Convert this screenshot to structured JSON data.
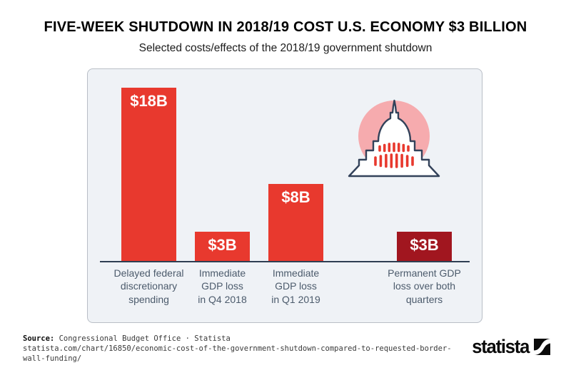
{
  "header": {
    "title": "FIVE-WEEK SHUTDOWN IN 2018/19 COST U.S. ECONOMY $3 BILLION",
    "subtitle": "Selected costs/effects of the 2018/19 government shutdown"
  },
  "chart_data": {
    "type": "bar",
    "title": "FIVE-WEEK SHUTDOWN IN 2018/19 COST U.S. ECONOMY $3 BILLION",
    "subtitle": "Selected costs/effects of the 2018/19 government shutdown",
    "categories": [
      "Delayed federal discretionary spending",
      "Immediate GDP loss in Q4 2018",
      "Immediate GDP loss in Q1 2019",
      "Permanent GDP loss over both quarters"
    ],
    "category_lines": [
      [
        "Delayed federal",
        "discretionary",
        "spending"
      ],
      [
        "Immediate",
        "GDP loss",
        "in Q4 2018"
      ],
      [
        "Immediate",
        "GDP loss",
        "in Q1 2019"
      ],
      [
        "Permanent GDP",
        "loss over both",
        "quarters"
      ]
    ],
    "values": [
      18,
      3,
      8,
      3
    ],
    "value_labels": [
      "$18B",
      "$3B",
      "$8B",
      "$3B"
    ],
    "bar_colors": [
      "#e8392e",
      "#e8392e",
      "#e8392e",
      "#a1161f"
    ],
    "ylim": [
      0,
      18
    ],
    "grid": false,
    "legend": "none",
    "annotations": [
      "US Capitol building icon in pink circle"
    ]
  },
  "footer": {
    "source_label": "Source:",
    "source_text": "Congressional Budget Office · Statista",
    "url_lines": [
      "statista.com/chart/16850/economic-cost-of-the-government-shutdown-compared-to-requested-border-",
      "wall-funding/"
    ],
    "logo_text": "statista"
  },
  "colors": {
    "bar_red": "#e8392e",
    "bar_dark_red": "#a1161f",
    "panel_bg": "#eff2f6",
    "axis": "#2f3e52",
    "category_text": "#4c5b6c",
    "capitol_circle_pink": "#f6abae",
    "capitol_outline": "#33425a",
    "logo_black": "#0b0b0b"
  }
}
